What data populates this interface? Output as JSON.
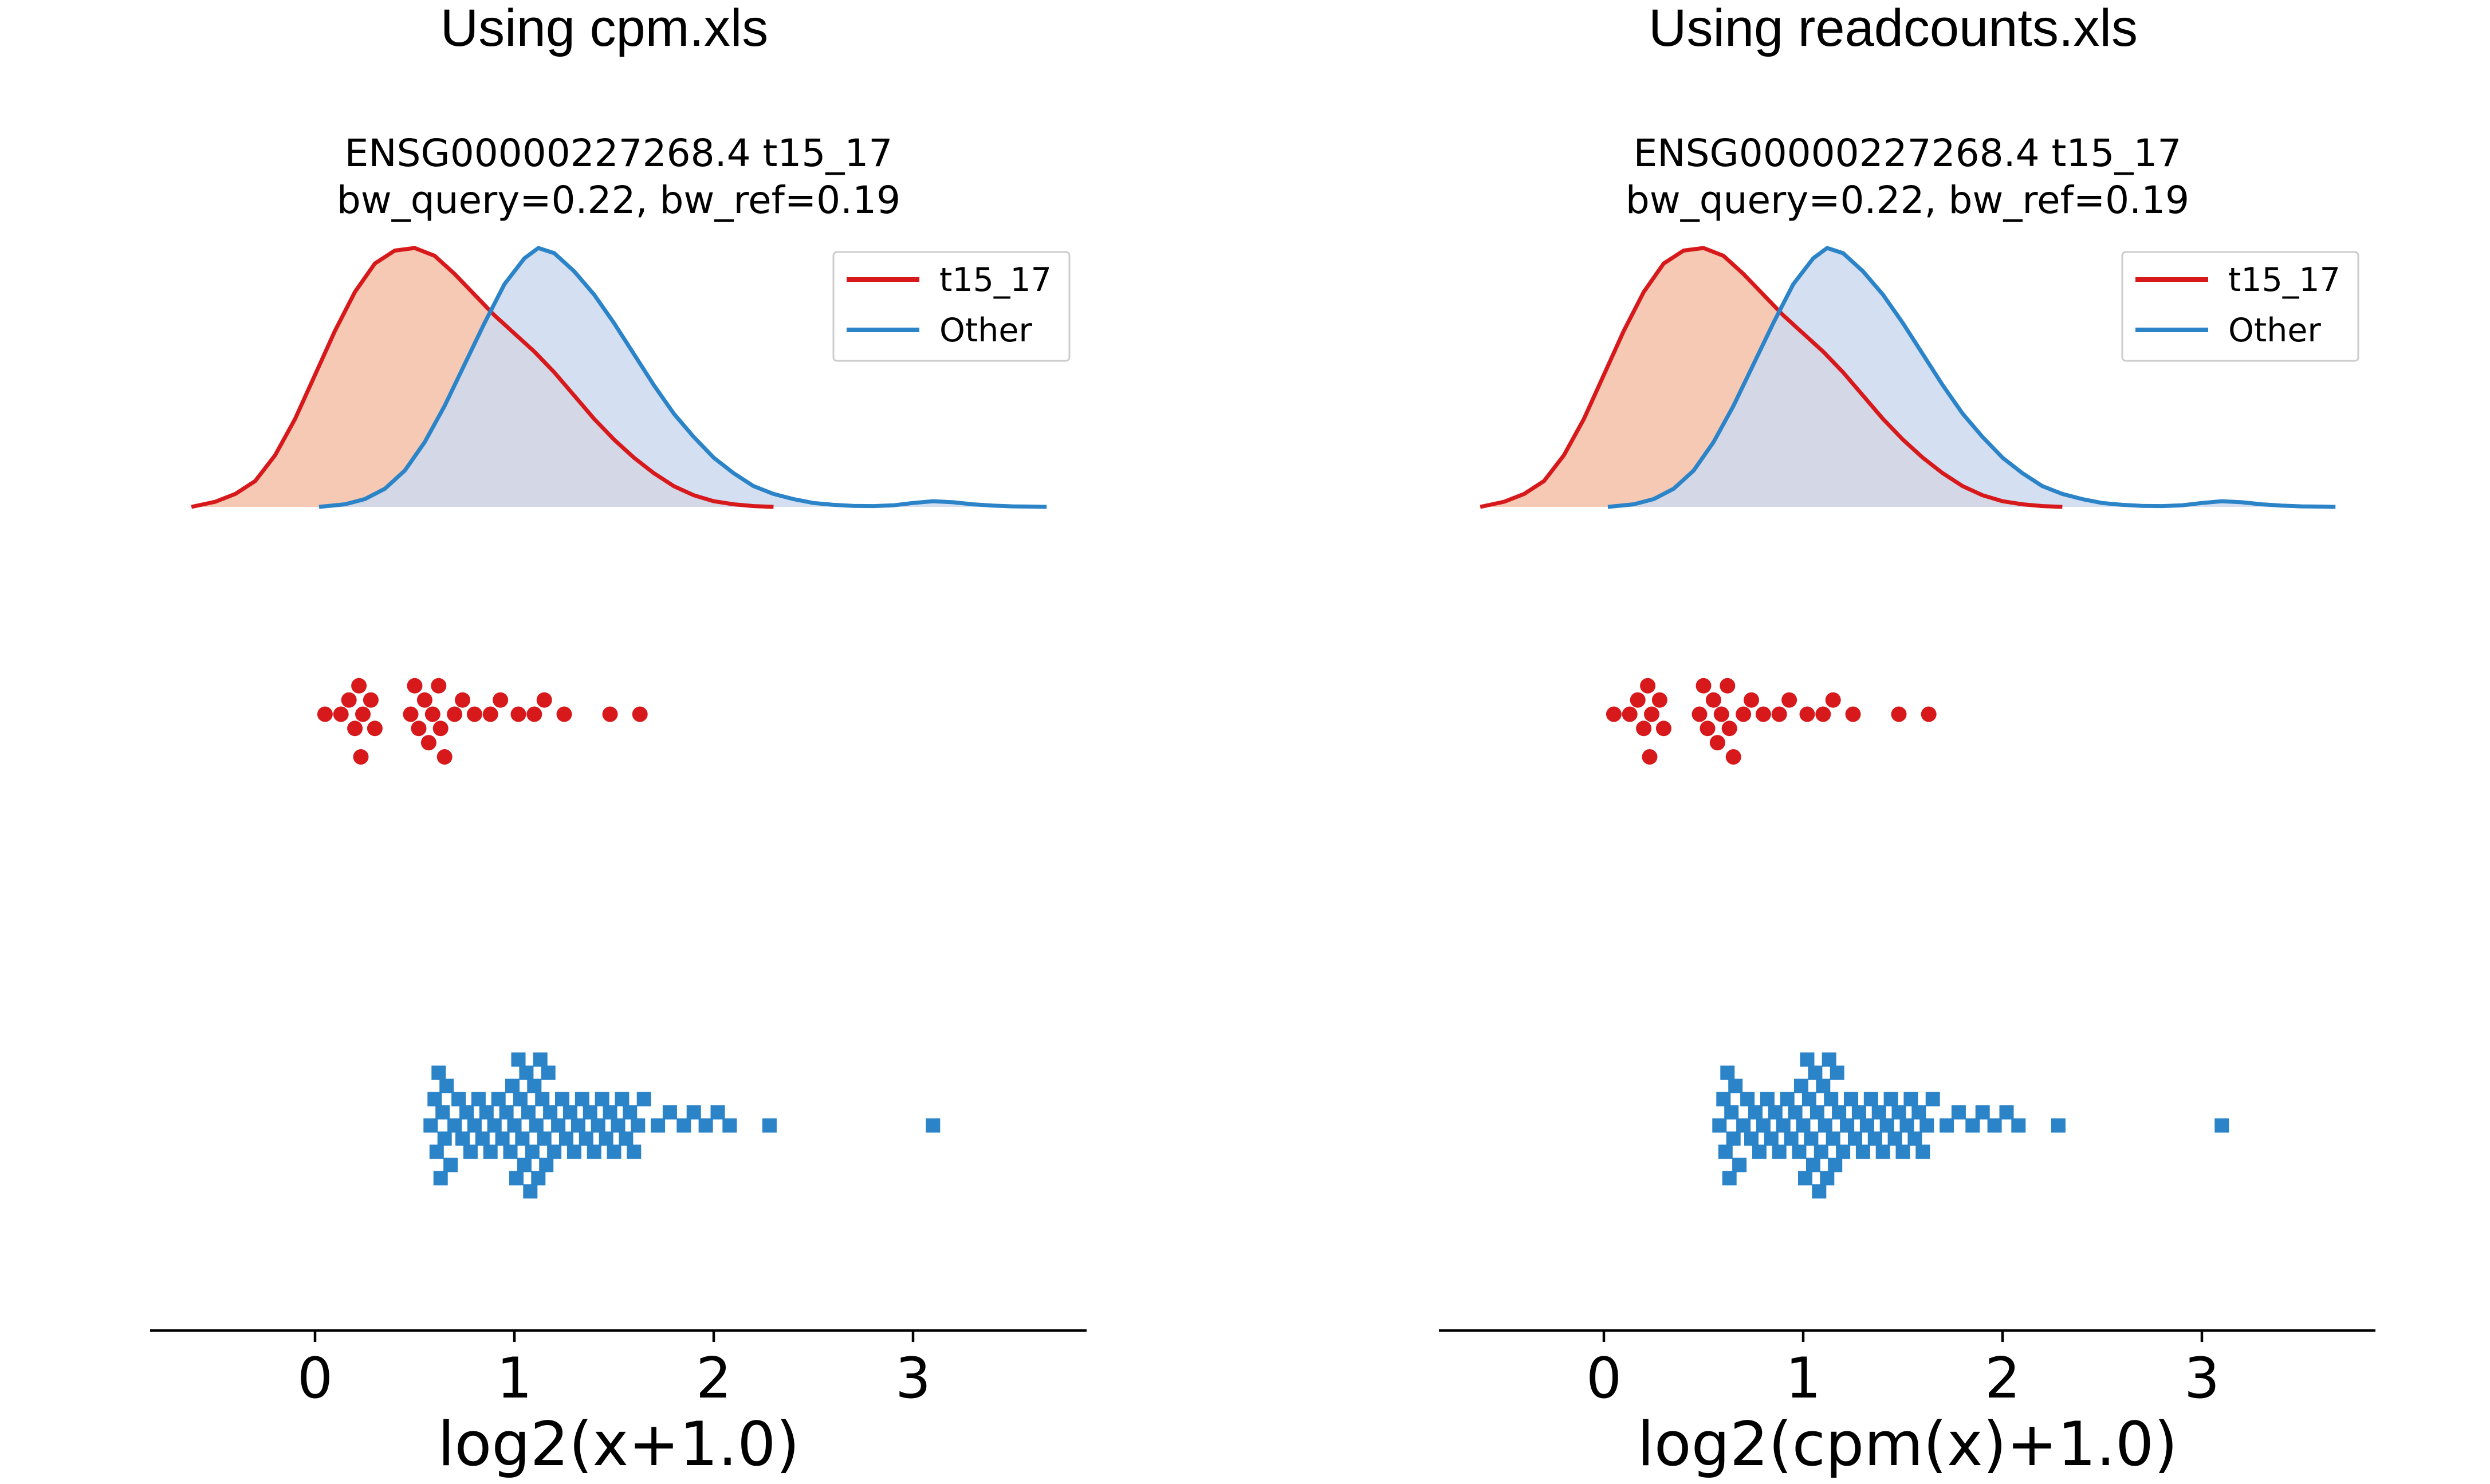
{
  "panels": [
    {
      "panel_title": "Using cpm.xls",
      "plot_title_line1": "ENSG00000227268.4 t15_17",
      "plot_title_line2": "bw_query=0.22, bw_ref=0.19"
    },
    {
      "panel_title": "Using readcounts.xls",
      "plot_title_line1": "ENSG00000227268.4 t15_17",
      "plot_title_line2": "bw_query=0.22, bw_ref=0.19"
    }
  ],
  "colors": {
    "query": "#d7191c",
    "query_fill": "#f4c6b0",
    "other": "#2b83c8",
    "other_fill": "#cdd9ee",
    "axis": "#000000"
  },
  "chart_data": [
    {
      "type": "density + swarm",
      "title": "ENSG00000227268.4 t15_17",
      "subtitle": "bw_query=0.22, bw_ref=0.19",
      "xlabel": "log2(x+1.0)",
      "ylabel": "",
      "xlim": [
        -0.8,
        3.9
      ],
      "xticks": [
        0,
        1,
        2,
        3
      ],
      "legend": {
        "position": "top-right",
        "entries": [
          "t15_17",
          "Other"
        ]
      },
      "series": [
        {
          "name": "t15_17",
          "role": "query",
          "marker": "circle",
          "density_x": [
            -0.62,
            -0.5,
            -0.4,
            -0.3,
            -0.2,
            -0.1,
            0.0,
            0.1,
            0.2,
            0.3,
            0.4,
            0.5,
            0.6,
            0.7,
            0.8,
            0.9,
            1.0,
            1.1,
            1.2,
            1.3,
            1.4,
            1.5,
            1.6,
            1.7,
            1.8,
            1.9,
            2.0,
            2.1,
            2.2,
            2.3
          ],
          "density_y": [
            0.0,
            0.02,
            0.05,
            0.1,
            0.2,
            0.34,
            0.51,
            0.68,
            0.83,
            0.94,
            0.99,
            1.0,
            0.97,
            0.9,
            0.82,
            0.74,
            0.67,
            0.6,
            0.52,
            0.43,
            0.34,
            0.26,
            0.19,
            0.13,
            0.08,
            0.045,
            0.022,
            0.01,
            0.003,
            0.0
          ],
          "points": [
            0.05,
            0.13,
            0.17,
            0.2,
            0.22,
            0.23,
            0.24,
            0.28,
            0.3,
            0.48,
            0.5,
            0.52,
            0.55,
            0.57,
            0.59,
            0.62,
            0.63,
            0.65,
            0.7,
            0.74,
            0.8,
            0.88,
            0.93,
            1.02,
            1.1,
            1.15,
            1.25,
            1.48,
            1.63
          ]
        },
        {
          "name": "Other",
          "role": "reference",
          "marker": "square",
          "density_x": [
            0.02,
            0.15,
            0.25,
            0.35,
            0.45,
            0.55,
            0.65,
            0.75,
            0.85,
            0.95,
            1.05,
            1.12,
            1.2,
            1.3,
            1.4,
            1.5,
            1.6,
            1.7,
            1.8,
            1.9,
            2.0,
            2.1,
            2.2,
            2.3,
            2.4,
            2.5,
            2.6,
            2.7,
            2.8,
            2.9,
            3.0,
            3.1,
            3.2,
            3.3,
            3.4,
            3.5,
            3.6,
            3.67
          ],
          "density_y": [
            0.0,
            0.01,
            0.03,
            0.07,
            0.14,
            0.25,
            0.39,
            0.55,
            0.71,
            0.86,
            0.96,
            1.0,
            0.98,
            0.91,
            0.82,
            0.71,
            0.59,
            0.47,
            0.36,
            0.27,
            0.19,
            0.13,
            0.08,
            0.05,
            0.03,
            0.015,
            0.008,
            0.004,
            0.003,
            0.006,
            0.015,
            0.022,
            0.018,
            0.01,
            0.005,
            0.002,
            0.001,
            0.0
          ],
          "points": [
            0.58,
            0.6,
            0.61,
            0.62,
            0.63,
            0.64,
            0.65,
            0.66,
            0.68,
            0.7,
            0.72,
            0.74,
            0.76,
            0.78,
            0.8,
            0.82,
            0.84,
            0.86,
            0.88,
            0.9,
            0.92,
            0.94,
            0.96,
            0.98,
            0.99,
            1.0,
            1.01,
            1.02,
            1.03,
            1.04,
            1.05,
            1.06,
            1.07,
            1.08,
            1.09,
            1.1,
            1.11,
            1.12,
            1.13,
            1.14,
            1.15,
            1.16,
            1.17,
            1.18,
            1.2,
            1.22,
            1.24,
            1.26,
            1.28,
            1.3,
            1.32,
            1.34,
            1.36,
            1.38,
            1.4,
            1.42,
            1.44,
            1.46,
            1.48,
            1.5,
            1.52,
            1.54,
            1.56,
            1.58,
            1.6,
            1.62,
            1.65,
            1.72,
            1.78,
            1.85,
            1.9,
            1.96,
            2.02,
            2.08,
            2.28,
            3.1
          ]
        }
      ]
    },
    {
      "type": "density + swarm",
      "title": "ENSG00000227268.4 t15_17",
      "subtitle": "bw_query=0.22, bw_ref=0.19",
      "xlabel": "log2(cpm(x)+1.0)",
      "ylabel": "",
      "xlim": [
        -0.8,
        3.9
      ],
      "xticks": [
        0,
        1,
        2,
        3
      ],
      "legend": {
        "position": "top-right",
        "entries": [
          "t15_17",
          "Other"
        ]
      },
      "series": [
        {
          "name": "t15_17",
          "role": "query",
          "marker": "circle",
          "density_x": [
            -0.62,
            -0.5,
            -0.4,
            -0.3,
            -0.2,
            -0.1,
            0.0,
            0.1,
            0.2,
            0.3,
            0.4,
            0.5,
            0.6,
            0.7,
            0.8,
            0.9,
            1.0,
            1.1,
            1.2,
            1.3,
            1.4,
            1.5,
            1.6,
            1.7,
            1.8,
            1.9,
            2.0,
            2.1,
            2.2,
            2.3
          ],
          "density_y": [
            0.0,
            0.02,
            0.05,
            0.1,
            0.2,
            0.34,
            0.51,
            0.68,
            0.83,
            0.94,
            0.99,
            1.0,
            0.97,
            0.9,
            0.82,
            0.74,
            0.67,
            0.6,
            0.52,
            0.43,
            0.34,
            0.26,
            0.19,
            0.13,
            0.08,
            0.045,
            0.022,
            0.01,
            0.003,
            0.0
          ],
          "points": [
            0.05,
            0.13,
            0.17,
            0.2,
            0.22,
            0.23,
            0.24,
            0.28,
            0.3,
            0.48,
            0.5,
            0.52,
            0.55,
            0.57,
            0.59,
            0.62,
            0.63,
            0.65,
            0.7,
            0.74,
            0.8,
            0.88,
            0.93,
            1.02,
            1.1,
            1.15,
            1.25,
            1.48,
            1.63
          ]
        },
        {
          "name": "Other",
          "role": "reference",
          "marker": "square",
          "density_x": [
            0.02,
            0.15,
            0.25,
            0.35,
            0.45,
            0.55,
            0.65,
            0.75,
            0.85,
            0.95,
            1.05,
            1.12,
            1.2,
            1.3,
            1.4,
            1.5,
            1.6,
            1.7,
            1.8,
            1.9,
            2.0,
            2.1,
            2.2,
            2.3,
            2.4,
            2.5,
            2.6,
            2.7,
            2.8,
            2.9,
            3.0,
            3.1,
            3.2,
            3.3,
            3.4,
            3.5,
            3.6,
            3.67
          ],
          "density_y": [
            0.0,
            0.01,
            0.03,
            0.07,
            0.14,
            0.25,
            0.39,
            0.55,
            0.71,
            0.86,
            0.96,
            1.0,
            0.98,
            0.91,
            0.82,
            0.71,
            0.59,
            0.47,
            0.36,
            0.27,
            0.19,
            0.13,
            0.08,
            0.05,
            0.03,
            0.015,
            0.008,
            0.004,
            0.003,
            0.006,
            0.015,
            0.022,
            0.018,
            0.01,
            0.005,
            0.002,
            0.001,
            0.0
          ],
          "points": [
            0.58,
            0.6,
            0.61,
            0.62,
            0.63,
            0.64,
            0.65,
            0.66,
            0.68,
            0.7,
            0.72,
            0.74,
            0.76,
            0.78,
            0.8,
            0.82,
            0.84,
            0.86,
            0.88,
            0.9,
            0.92,
            0.94,
            0.96,
            0.98,
            0.99,
            1.0,
            1.01,
            1.02,
            1.03,
            1.04,
            1.05,
            1.06,
            1.07,
            1.08,
            1.09,
            1.1,
            1.11,
            1.12,
            1.13,
            1.14,
            1.15,
            1.16,
            1.17,
            1.18,
            1.2,
            1.22,
            1.24,
            1.26,
            1.28,
            1.3,
            1.32,
            1.34,
            1.36,
            1.38,
            1.4,
            1.42,
            1.44,
            1.46,
            1.48,
            1.5,
            1.52,
            1.54,
            1.56,
            1.58,
            1.6,
            1.62,
            1.65,
            1.72,
            1.78,
            1.85,
            1.9,
            1.96,
            2.02,
            2.08,
            2.28,
            3.1
          ]
        }
      ]
    }
  ]
}
